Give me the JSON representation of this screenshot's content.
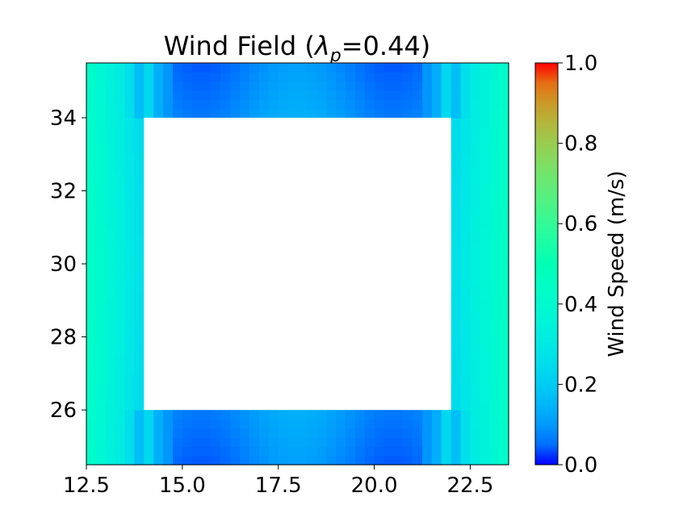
{
  "chart_data": {
    "type": "heatmap",
    "title": "Wind Field (λ=0.44)",
    "title_parts": {
      "prefix": "Wind Field (",
      "symbol": "λ",
      "subscript": "p",
      "suffix": "=0.44)"
    },
    "colormap": "rainbow",
    "xlim": [
      12.5,
      23.5
    ],
    "ylim": [
      24.5,
      35.5
    ],
    "x_ticks": [
      12.5,
      15.0,
      17.5,
      20.0,
      22.5
    ],
    "x_tick_labels": [
      "12.5",
      "15.0",
      "17.5",
      "20.0",
      "22.5"
    ],
    "y_ticks": [
      26,
      28,
      30,
      32,
      34
    ],
    "y_tick_labels": [
      "26",
      "28",
      "30",
      "32",
      "34"
    ],
    "obstacle": {
      "x": [
        14.0,
        22.0
      ],
      "y": [
        26.0,
        34.0
      ],
      "color": "#ffffff"
    },
    "colorbar": {
      "label": "Wind Speed (m/s)",
      "range": [
        0.0,
        1.0
      ],
      "ticks": [
        0.0,
        0.2,
        0.4,
        0.6,
        0.8,
        1.0
      ],
      "tick_labels": [
        "0.0",
        "0.2",
        "0.4",
        "0.6",
        "0.8",
        "1.0"
      ]
    },
    "grid_resolution": 0.25,
    "field_samples": {
      "side_columns_x": [
        12.5,
        13.0,
        13.5,
        13.8,
        14.0
      ],
      "side_columns_speed": [
        0.46,
        0.44,
        0.38,
        0.3,
        0.24
      ],
      "top_band_speed_range": [
        0.05,
        0.13
      ],
      "bottom_band_speed_range": [
        0.05,
        0.15
      ]
    }
  }
}
